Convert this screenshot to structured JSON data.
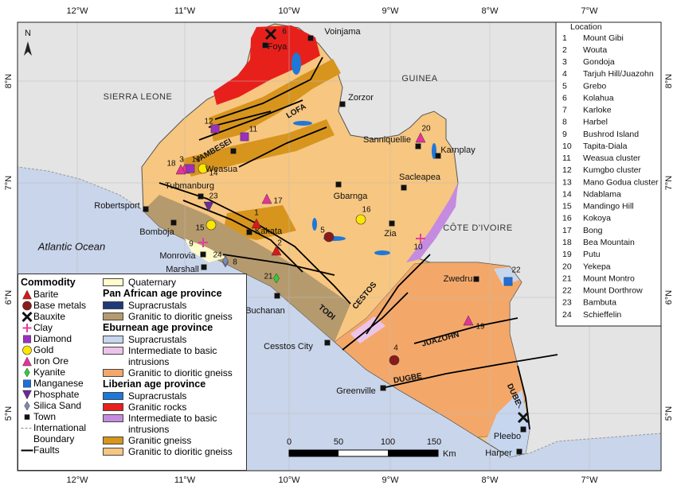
{
  "map": {
    "north": "N",
    "longitudes": [
      "12°W",
      "11°W",
      "10°W",
      "9°W",
      "8°W",
      "7°W"
    ],
    "latitudes": [
      "8°N",
      "7°N",
      "6°N",
      "5°N"
    ],
    "countries": [
      "SIERRA LEONE",
      "GUINEA",
      "CÔTE D'IVOIRE"
    ],
    "ocean": "Atlantic Ocean",
    "towns": [
      "Voinjama",
      "Foya",
      "Zorzor",
      "Sanniquellie",
      "Karnplay",
      "Weasua",
      "Sacleapea",
      "Gbarnga",
      "Tubmanburg",
      "Robertsport",
      "Bomboja",
      "Kakata",
      "Zia",
      "Monrovia",
      "Marshall",
      "Buchanan",
      "Zwedru",
      "Cesstos City",
      "Greenville",
      "Pleebo",
      "Harper"
    ],
    "faults": [
      "LOFA",
      "YAMBESEI",
      "TODI",
      "CESTOS",
      "JUAZOHN",
      "DUGBE",
      "DUBE"
    ],
    "site_numbers": [
      "1",
      "2",
      "3",
      "4",
      "5",
      "6",
      "7",
      "8",
      "9",
      "10",
      "11",
      "12",
      "13",
      "14",
      "15",
      "16",
      "17",
      "18",
      "19",
      "20",
      "21",
      "22",
      "23",
      "24"
    ]
  },
  "locations": {
    "header": "Location",
    "rows": [
      [
        "1",
        "Mount Gibi"
      ],
      [
        "2",
        "Wouta"
      ],
      [
        "3",
        "Gondoja"
      ],
      [
        "4",
        "Tarjuh Hill/Juazohn"
      ],
      [
        "5",
        "Grebo"
      ],
      [
        "6",
        "Kolahua"
      ],
      [
        "7",
        "Karloke"
      ],
      [
        "8",
        "Harbel"
      ],
      [
        "9",
        "Bushrod Island"
      ],
      [
        "10",
        "Tapita-Diala"
      ],
      [
        "11",
        "Weasua cluster"
      ],
      [
        "12",
        "Kumgbo cluster"
      ],
      [
        "13",
        "Mano Godua cluster"
      ],
      [
        "14",
        "Ndablama"
      ],
      [
        "15",
        "Mandingo Hill"
      ],
      [
        "16",
        "Kokoya"
      ],
      [
        "17",
        "Bong"
      ],
      [
        "18",
        "Bea Mountain"
      ],
      [
        "19",
        "Putu"
      ],
      [
        "20",
        "Yekepa"
      ],
      [
        "21",
        "Mount Montro"
      ],
      [
        "22",
        "Mount Dorthrow"
      ],
      [
        "23",
        "Bambuta"
      ],
      [
        "24",
        "Schieffelin"
      ]
    ]
  },
  "legend": {
    "commodity_title": "Commodity",
    "commodities": [
      "Barite",
      "Base metals",
      "Bauxite",
      "Clay",
      "Diamond",
      "Gold",
      "Iron Ore",
      "Kyanite",
      "Manganese",
      "Phosphate",
      "Silica Sand",
      "Town",
      "International Boundary",
      "Faults"
    ],
    "quaternary": {
      "name": "Quaternary",
      "color": "#fffbcc"
    },
    "provinces": [
      {
        "name": "Pan African age province",
        "units": [
          {
            "name": "Supracrustals",
            "color": "#1f3a78"
          },
          {
            "name": "Granitic to dioritic gneiss",
            "color": "#b59a6e"
          }
        ]
      },
      {
        "name": "Eburnean age province",
        "units": [
          {
            "name": "Supracrustals",
            "color": "#c6d6ee"
          },
          {
            "name": "Intermediate to basic intrusions",
            "color": "#ecc4ea"
          },
          {
            "name": "Granitic to dioritic gneiss",
            "color": "#f3a86a"
          }
        ]
      },
      {
        "name": "Liberian age province",
        "units": [
          {
            "name": "Supracrustals",
            "color": "#1e78d8"
          },
          {
            "name": "Granitic rocks",
            "color": "#e8201c"
          },
          {
            "name": "Intermediate to basic intrusions",
            "color": "#c58be0"
          },
          {
            "name": "Granitic gneiss",
            "color": "#d7951e"
          },
          {
            "name": "Granitic to dioritic gneiss",
            "color": "#f7c680"
          }
        ]
      }
    ]
  },
  "scale": {
    "ticks": [
      0,
      50,
      100,
      150
    ],
    "unit": "Km"
  }
}
